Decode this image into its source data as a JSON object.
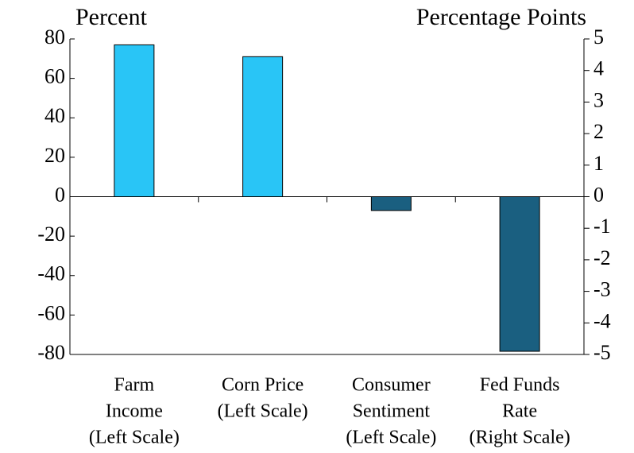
{
  "chart_data": {
    "type": "bar",
    "ylabel": "Percent",
    "y2label": "Percentage Points",
    "categories": [
      [
        "Farm",
        "Income",
        "(Left Scale)"
      ],
      [
        "Corn Price",
        "(Left Scale)"
      ],
      [
        "Consumer",
        "Sentiment",
        "(Left Scale)"
      ],
      [
        "Fed Funds",
        "Rate",
        "(Right Scale)"
      ]
    ],
    "colors": [
      "#29c5f6",
      "#29c5f6",
      "#1a5f80",
      "#1a5f80"
    ],
    "series": [
      {
        "values": [
          77,
          71,
          -7,
          null
        ]
      },
      {
        "values": [
          null,
          null,
          null,
          -4.9
        ],
        "axis": "y2"
      }
    ],
    "ylim": [
      -80,
      80
    ],
    "yticks": [
      -80,
      -60,
      -40,
      -20,
      0,
      20,
      40,
      60,
      80
    ],
    "y2lim": [
      -5,
      5
    ],
    "y2ticks": [
      -5,
      -4,
      -3,
      -2,
      -1,
      0,
      1,
      2,
      3,
      4,
      5
    ]
  }
}
